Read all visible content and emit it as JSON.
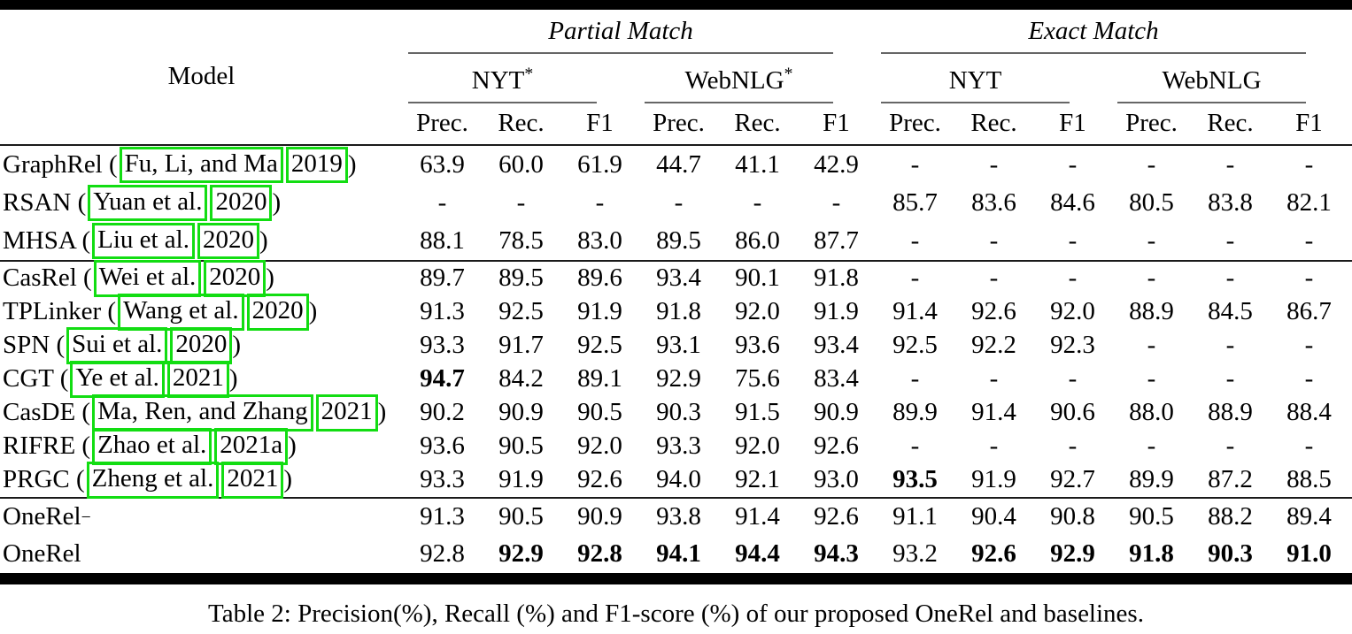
{
  "table": {
    "annotation_color": "#12dd12",
    "caption": "Table 2: Precision(%), Recall (%) and F1-score (%) of our proposed OneRel and baselines.",
    "header": {
      "model_label": "Model",
      "metrics": [
        "Prec.",
        "Rec.",
        "F1"
      ],
      "groups": [
        {
          "label": "Partial Match",
          "datasets": [
            {
              "name": "NYT",
              "sup": "*"
            },
            {
              "name": "WebNLG",
              "sup": "*"
            }
          ]
        },
        {
          "label": "Exact Match",
          "datasets": [
            {
              "name": "NYT",
              "sup": ""
            },
            {
              "name": "WebNLG",
              "sup": ""
            }
          ]
        }
      ]
    },
    "row_groups": [
      [
        {
          "prefix": "GraphRel (",
          "authors": "Fu, Li, and Ma",
          "year": "2019",
          "suffix": ")",
          "values": [
            "63.9",
            "60.0",
            "61.9",
            "44.7",
            "41.1",
            "42.9",
            "-",
            "-",
            "-",
            "-",
            "-",
            "-"
          ],
          "bold": []
        },
        {
          "prefix": "RSAN (",
          "authors": "Yuan et al.",
          "year": "2020",
          "suffix": ")",
          "values": [
            "-",
            "-",
            "-",
            "-",
            "-",
            "-",
            "85.7",
            "83.6",
            "84.6",
            "80.5",
            "83.8",
            "82.1"
          ],
          "bold": []
        },
        {
          "prefix": "MHSA (",
          "authors": "Liu et al.",
          "year": "2020",
          "suffix": ")",
          "values": [
            "88.1",
            "78.5",
            "83.0",
            "89.5",
            "86.0",
            "87.7",
            "-",
            "-",
            "-",
            "-",
            "-",
            "-"
          ],
          "bold": []
        }
      ],
      [
        {
          "prefix": "CasRel (",
          "authors": "Wei et al.",
          "year": "2020",
          "suffix": ")",
          "values": [
            "89.7",
            "89.5",
            "89.6",
            "93.4",
            "90.1",
            "91.8",
            "-",
            "-",
            "-",
            "-",
            "-",
            "-"
          ],
          "bold": []
        },
        {
          "prefix": "TPLinker (",
          "authors": "Wang et al.",
          "year": "2020",
          "suffix": ")",
          "values": [
            "91.3",
            "92.5",
            "91.9",
            "91.8",
            "92.0",
            "91.9",
            "91.4",
            "92.6",
            "92.0",
            "88.9",
            "84.5",
            "86.7"
          ],
          "bold": []
        },
        {
          "prefix": "SPN (",
          "authors": "Sui et al.",
          "year": "2020",
          "suffix": ")",
          "values": [
            "93.3",
            "91.7",
            "92.5",
            "93.1",
            "93.6",
            "93.4",
            "92.5",
            "92.2",
            "92.3",
            "-",
            "-",
            "-"
          ],
          "bold": []
        },
        {
          "prefix": "CGT (",
          "authors": "Ye et al.",
          "year": "2021",
          "suffix": ")",
          "values": [
            "94.7",
            "84.2",
            "89.1",
            "92.9",
            "75.6",
            "83.4",
            "-",
            "-",
            "-",
            "-",
            "-",
            "-"
          ],
          "bold": [
            0
          ]
        },
        {
          "prefix": "CasDE (",
          "authors": "Ma, Ren, and Zhang",
          "year": "2021",
          "suffix": ")",
          "values": [
            "90.2",
            "90.9",
            "90.5",
            "90.3",
            "91.5",
            "90.9",
            "89.9",
            "91.4",
            "90.6",
            "88.0",
            "88.9",
            "88.4"
          ],
          "bold": []
        },
        {
          "prefix": "RIFRE (",
          "authors": "Zhao et al.",
          "year": "2021a",
          "suffix": ")",
          "values": [
            "93.6",
            "90.5",
            "92.0",
            "93.3",
            "92.0",
            "92.6",
            "-",
            "-",
            "-",
            "-",
            "-",
            "-"
          ],
          "bold": []
        },
        {
          "prefix": "PRGC (",
          "authors": "Zheng et al.",
          "year": "2021",
          "suffix": ")",
          "values": [
            "93.3",
            "91.9",
            "92.6",
            "94.0",
            "92.1",
            "93.0",
            "93.5",
            "91.9",
            "92.7",
            "89.9",
            "87.2",
            "88.5"
          ],
          "bold": [
            6
          ]
        }
      ],
      [
        {
          "prefix": "OneRel",
          "sup": "−",
          "values": [
            "91.3",
            "90.5",
            "90.9",
            "93.8",
            "91.4",
            "92.6",
            "91.1",
            "90.4",
            "90.8",
            "90.5",
            "88.2",
            "89.4"
          ],
          "bold": []
        },
        {
          "prefix": "OneRel",
          "values": [
            "92.8",
            "92.9",
            "92.8",
            "94.1",
            "94.4",
            "94.3",
            "93.2",
            "92.6",
            "92.9",
            "91.8",
            "90.3",
            "91.0"
          ],
          "bold": [
            1,
            2,
            3,
            4,
            5,
            7,
            8,
            9,
            10,
            11
          ]
        }
      ]
    ]
  }
}
